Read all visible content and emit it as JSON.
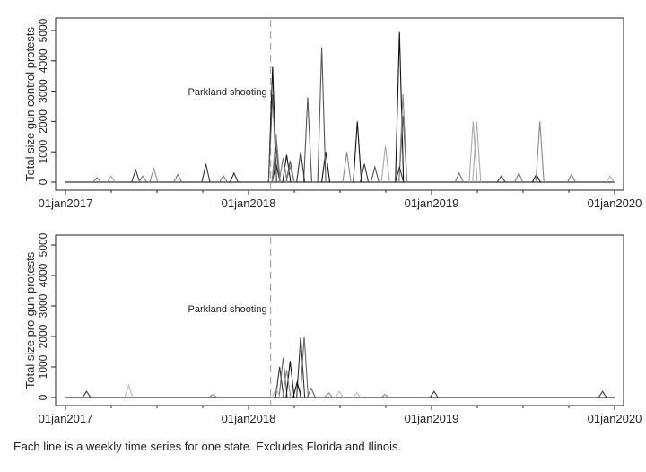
{
  "caption": "Each line is a weekly time series for one state. Excludes Florida and Ilinois.",
  "chart_data": [
    {
      "type": "line",
      "ylabel": "Total size gun control protests",
      "ylim": [
        0,
        5000
      ],
      "yticks": [
        0,
        1000,
        2000,
        3000,
        4000,
        5000
      ],
      "xlim": [
        "2017-01-01",
        "2019-12-31"
      ],
      "xticks": [
        {
          "date": "2017-01-01",
          "label": "01jan2017"
        },
        {
          "date": "2018-01-01",
          "label": "01jan2018"
        },
        {
          "date": "2019-01-01",
          "label": "01jan2019"
        },
        {
          "date": "2020-01-01",
          "label": "01jan2020"
        }
      ],
      "grid": false,
      "annotation": {
        "text": "Parkland shooting",
        "date": "2018-02-14"
      },
      "series": [
        {
          "color": "#111111",
          "points": [
            [
              "2018-02-18",
              3800
            ],
            [
              "2018-02-25",
              600
            ],
            [
              "2018-03-18",
              900
            ],
            [
              "2018-06-04",
              1000
            ],
            [
              "2018-08-06",
              2000
            ],
            [
              "2018-10-29",
              4950
            ],
            [
              "2019-07-29",
              250
            ]
          ]
        },
        {
          "color": "#555555",
          "points": [
            [
              "2018-02-18",
              2900
            ],
            [
              "2018-03-25",
              700
            ],
            [
              "2018-04-29",
              2800
            ],
            [
              "2018-05-27",
              4450
            ],
            [
              "2018-09-10",
              500
            ],
            [
              "2018-11-05",
              2200
            ]
          ]
        },
        {
          "color": "#888888",
          "points": [
            [
              "2017-06-26",
              450
            ],
            [
              "2018-02-25",
              1600
            ],
            [
              "2018-03-25",
              500
            ],
            [
              "2018-07-16",
              1000
            ],
            [
              "2018-11-05",
              2900
            ],
            [
              "2019-08-05",
              2000
            ]
          ]
        },
        {
          "color": "#aaaaaa",
          "points": [
            [
              "2017-04-02",
              200
            ],
            [
              "2018-02-25",
              1000
            ],
            [
              "2018-10-01",
              1200
            ],
            [
              "2019-03-25",
              2000
            ],
            [
              "2019-04-01",
              2000
            ],
            [
              "2019-12-23",
              200
            ]
          ]
        },
        {
          "color": "#333333",
          "points": [
            [
              "2017-05-21",
              400
            ],
            [
              "2017-10-08",
              600
            ],
            [
              "2017-12-03",
              300
            ],
            [
              "2018-02-25",
              1200
            ],
            [
              "2018-04-15",
              1000
            ],
            [
              "2018-08-20",
              600
            ],
            [
              "2018-10-29",
              500
            ],
            [
              "2019-05-20",
              200
            ]
          ]
        },
        {
          "color": "#777777",
          "points": [
            [
              "2017-03-05",
              150
            ],
            [
              "2017-06-04",
              200
            ],
            [
              "2017-08-13",
              250
            ],
            [
              "2017-11-12",
              200
            ],
            [
              "2018-02-25",
              1400
            ],
            [
              "2018-03-11",
              800
            ],
            [
              "2019-02-25",
              300
            ],
            [
              "2019-06-24",
              300
            ],
            [
              "2019-10-07",
              250
            ]
          ]
        }
      ]
    },
    {
      "type": "line",
      "ylabel": "Total size pro-gun protests",
      "ylim": [
        0,
        5000
      ],
      "yticks": [
        0,
        1000,
        2000,
        3000,
        4000,
        5000
      ],
      "xlim": [
        "2017-01-01",
        "2019-12-31"
      ],
      "xticks": [
        {
          "date": "2017-01-01",
          "label": "01jan2017"
        },
        {
          "date": "2018-01-01",
          "label": "01jan2018"
        },
        {
          "date": "2019-01-01",
          "label": "01jan2019"
        },
        {
          "date": "2020-01-01",
          "label": "01jan2020"
        }
      ],
      "grid": false,
      "annotation": {
        "text": "Parkland shooting",
        "date": "2018-02-14"
      },
      "series": [
        {
          "color": "#333333",
          "points": [
            [
              "2017-02-12",
              200
            ],
            [
              "2018-03-04",
              1000
            ],
            [
              "2018-04-15",
              2000
            ],
            [
              "2019-01-06",
              200
            ],
            [
              "2019-12-08",
              200
            ]
          ]
        },
        {
          "color": "#666666",
          "points": [
            [
              "2018-03-11",
              1300
            ],
            [
              "2018-04-22",
              2000
            ],
            [
              "2018-05-06",
              300
            ]
          ]
        },
        {
          "color": "#111111",
          "points": [
            [
              "2018-03-25",
              1200
            ],
            [
              "2018-04-08",
              500
            ]
          ]
        },
        {
          "color": "#bbbbbb",
          "points": [
            [
              "2017-05-07",
              400
            ],
            [
              "2018-02-25",
              300
            ],
            [
              "2018-07-01",
              200
            ],
            [
              "2018-08-05",
              150
            ]
          ]
        },
        {
          "color": "#888888",
          "points": [
            [
              "2017-10-22",
              100
            ],
            [
              "2018-03-18",
              900
            ],
            [
              "2018-06-10",
              150
            ],
            [
              "2018-09-30",
              100
            ]
          ]
        }
      ]
    }
  ]
}
